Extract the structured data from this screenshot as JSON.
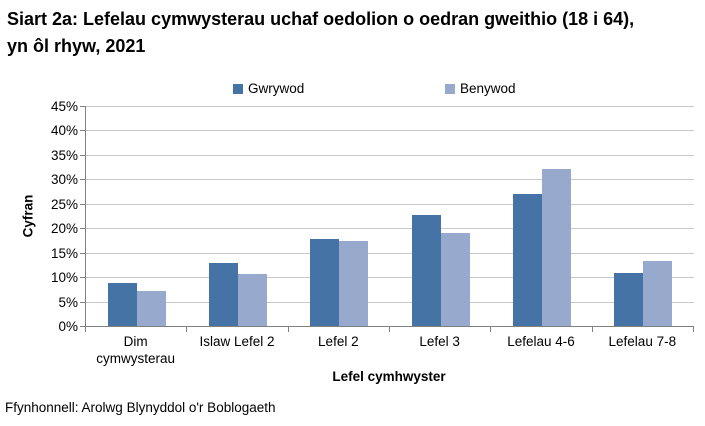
{
  "title": "Siart 2a: Lefelau cymwysterau uchaf oedolion o oedran gweithio (18 i 64), yn ôl rhyw, 2021",
  "source": "Ffynhonnell: Arolwg Blynyddol o'r Boblogaeth",
  "colors": {
    "male_series": "#4673A5",
    "female_series": "#98A9CE",
    "gridline": "#c9c9c9",
    "axis": "#808080",
    "text": "#000000"
  },
  "chart_data": {
    "type": "bar",
    "title": "Siart 2a: Lefelau cymwysterau uchaf oedolion o oedran gweithio (18 i 64), yn ôl rhyw, 2021",
    "xlabel": "Lefel cymhwyster",
    "ylabel": "Cyfran",
    "categories": [
      "Dim cymwysterau",
      "Islaw Lefel 2",
      "Lefel 2",
      "Lefel 3",
      "Lefelau 4-6",
      "Lefelau 7-8"
    ],
    "series": [
      {
        "name": "Gwrywod",
        "color": "#4673A5",
        "values": [
          8.8,
          12.9,
          17.7,
          22.7,
          27.1,
          10.9
        ]
      },
      {
        "name": "Benywod",
        "color": "#98A9CE",
        "values": [
          7.2,
          10.7,
          17.4,
          19.1,
          32.2,
          13.3
        ]
      }
    ],
    "ylim": [
      0,
      45
    ],
    "ytick_step": 5,
    "yticks": [
      "0%",
      "5%",
      "10%",
      "15%",
      "20%",
      "25%",
      "30%",
      "35%",
      "40%",
      "45%"
    ],
    "grid": true,
    "legend_position": "top",
    "source": "Ffynhonnell: Arolwg Blynyddol o'r Boblogaeth"
  }
}
